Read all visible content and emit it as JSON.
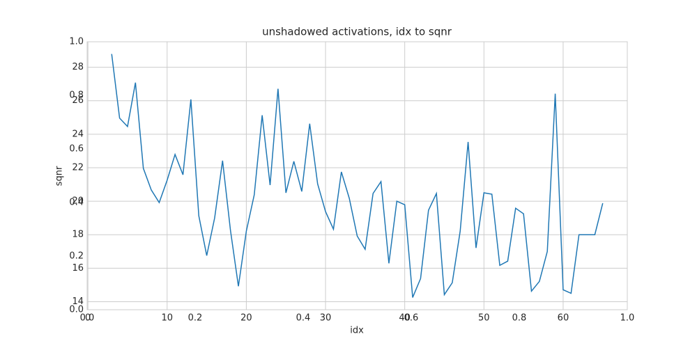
{
  "chart_data": [
    {
      "type": "line",
      "title": "unshadowed activations, idx to sqnr",
      "xlabel": "idx",
      "ylabel": "sqnr",
      "color": "#1f77b4",
      "grid": true,
      "x": [
        3,
        4,
        5,
        6,
        7,
        8,
        9,
        10,
        11,
        12,
        13,
        14,
        15,
        16,
        17,
        18,
        19,
        20,
        21,
        22,
        23,
        24,
        25,
        26,
        27,
        28,
        29,
        30,
        31,
        32,
        33,
        34,
        35,
        36,
        37,
        38,
        39,
        40,
        41,
        42,
        43,
        44,
        45,
        46,
        47,
        48,
        49,
        50,
        51,
        52,
        53,
        54,
        55,
        56,
        57,
        58,
        59,
        60,
        61,
        62,
        63,
        64,
        65
      ],
      "values": [
        28.79,
        24.96,
        24.46,
        27.08,
        21.96,
        20.67,
        19.92,
        21.25,
        22.79,
        21.58,
        26.08,
        19.13,
        16.75,
        19.0,
        22.42,
        18.25,
        14.92,
        18.21,
        20.38,
        25.13,
        20.96,
        26.71,
        20.5,
        22.38,
        20.58,
        24.63,
        21.04,
        19.38,
        18.33,
        21.75,
        20.17,
        17.92,
        17.13,
        20.46,
        21.17,
        16.29,
        20.0,
        19.79,
        14.25,
        15.38,
        19.46,
        20.46,
        14.42,
        15.13,
        18.21,
        23.54,
        17.21,
        20.5,
        20.42,
        16.17,
        16.42,
        19.58,
        19.25,
        14.63,
        15.21,
        17.0,
        26.42,
        14.71,
        14.5,
        18.0,
        18.0,
        18.0,
        19.88
      ],
      "xlim": [
        -0.1,
        68.1
      ],
      "ylim": [
        13.52,
        29.52
      ],
      "xticks": [
        0,
        10,
        20,
        30,
        40,
        50,
        60
      ],
      "yticks": [
        14,
        16,
        18,
        20,
        22,
        24,
        26,
        28
      ]
    },
    {
      "type": "axes",
      "xlim": [
        0,
        1
      ],
      "ylim": [
        0,
        1
      ],
      "xticks": [
        {
          "value": 0,
          "label": "0.0"
        },
        {
          "value": 0.2,
          "label": "0.2"
        },
        {
          "value": 0.4,
          "label": "0.4"
        },
        {
          "value": 0.6,
          "label": "0.6"
        },
        {
          "value": 0.8,
          "label": "0.8"
        },
        {
          "value": 1,
          "label": "1.0"
        }
      ],
      "yticks": [
        {
          "value": 0,
          "label": "0.0"
        },
        {
          "value": 0.2,
          "label": "0.2"
        },
        {
          "value": 0.4,
          "label": "0.4"
        },
        {
          "value": 0.6,
          "label": "0.6"
        },
        {
          "value": 0.8,
          "label": "0.8"
        },
        {
          "value": 1,
          "label": "1.0"
        }
      ]
    }
  ]
}
